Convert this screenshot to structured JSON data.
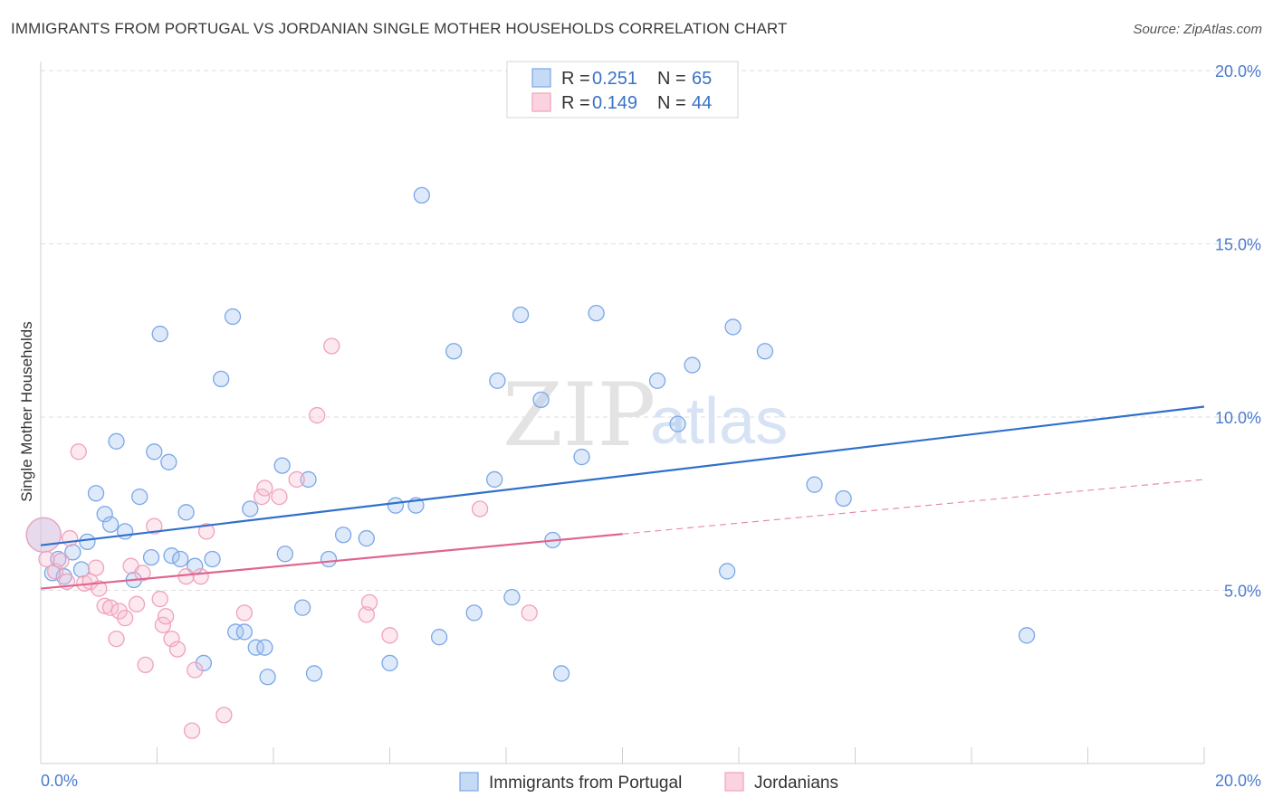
{
  "header": {
    "title": "IMMIGRANTS FROM PORTUGAL VS JORDANIAN SINGLE MOTHER HOUSEHOLDS CORRELATION CHART",
    "source": "Source: ZipAtlas.com"
  },
  "watermark": {
    "part1": "ZIP",
    "part2": "atlas"
  },
  "legend": {
    "rows": [
      {
        "r_label": "R =",
        "r_value": "0.251",
        "n_label": "N =",
        "n_value": "65"
      },
      {
        "r_label": "R =",
        "r_value": "0.149",
        "n_label": "N =",
        "n_value": "44"
      }
    ]
  },
  "chart_data": {
    "type": "scatter",
    "ylabel": "Single Mother Households",
    "xlabel": "",
    "xlim": [
      0,
      20
    ],
    "ylim": [
      0,
      20
    ],
    "x_tick_labels": {
      "min": "0.0%",
      "max": "20.0%"
    },
    "y_ticks": [
      {
        "value": 5,
        "label": "5.0%"
      },
      {
        "value": 10,
        "label": "10.0%"
      },
      {
        "value": 15,
        "label": "15.0%"
      },
      {
        "value": 20,
        "label": "20.0%"
      }
    ],
    "grid": true,
    "legend_position": "top-center",
    "colors": {
      "portugal": "#7aa7e6",
      "portugal_line": "#3070cc",
      "jordan": "#f0a2bb",
      "jordan_line": "#e0658e"
    },
    "series": [
      {
        "name": "Immigrants from Portugal",
        "r": 0.251,
        "n": 65,
        "trend": {
          "x1": 0,
          "y1": 6.3,
          "x2": 20,
          "y2": 10.3,
          "dashed_from": null
        },
        "points": [
          [
            0.05,
            6.6,
            "big"
          ],
          [
            0.2,
            5.5
          ],
          [
            0.3,
            5.9
          ],
          [
            0.4,
            5.4
          ],
          [
            0.55,
            6.1
          ],
          [
            0.7,
            5.6
          ],
          [
            0.8,
            6.4
          ],
          [
            0.95,
            7.8
          ],
          [
            1.1,
            7.2
          ],
          [
            1.2,
            6.9
          ],
          [
            1.45,
            6.7
          ],
          [
            1.6,
            5.3
          ],
          [
            1.3,
            9.3
          ],
          [
            1.7,
            7.7
          ],
          [
            1.9,
            5.95
          ],
          [
            1.95,
            9.0
          ],
          [
            2.05,
            12.4
          ],
          [
            2.2,
            8.7
          ],
          [
            2.25,
            6.0
          ],
          [
            2.5,
            7.25
          ],
          [
            2.4,
            5.9
          ],
          [
            2.65,
            5.7
          ],
          [
            2.8,
            2.9
          ],
          [
            2.95,
            5.9
          ],
          [
            3.1,
            11.1
          ],
          [
            3.3,
            12.9
          ],
          [
            3.35,
            3.8
          ],
          [
            3.5,
            3.8
          ],
          [
            3.6,
            7.35
          ],
          [
            3.7,
            3.35
          ],
          [
            3.9,
            2.5
          ],
          [
            3.85,
            3.35
          ],
          [
            4.15,
            8.6
          ],
          [
            4.2,
            6.05
          ],
          [
            4.5,
            4.5
          ],
          [
            4.6,
            8.2
          ],
          [
            4.7,
            2.6
          ],
          [
            4.95,
            5.9
          ],
          [
            5.2,
            6.6
          ],
          [
            5.6,
            6.5
          ],
          [
            6.0,
            2.9
          ],
          [
            6.1,
            7.45
          ],
          [
            6.45,
            7.45
          ],
          [
            6.55,
            16.4
          ],
          [
            6.85,
            3.65
          ],
          [
            7.1,
            11.9
          ],
          [
            7.45,
            4.35
          ],
          [
            7.8,
            8.2
          ],
          [
            7.85,
            11.05
          ],
          [
            8.1,
            4.8
          ],
          [
            8.25,
            12.95
          ],
          [
            8.6,
            10.5
          ],
          [
            8.8,
            6.45
          ],
          [
            8.95,
            2.6
          ],
          [
            9.3,
            8.85
          ],
          [
            9.55,
            13.0
          ],
          [
            10.6,
            11.05
          ],
          [
            10.95,
            9.8
          ],
          [
            11.2,
            11.5
          ],
          [
            11.8,
            5.55
          ],
          [
            11.9,
            12.6
          ],
          [
            12.45,
            11.9
          ],
          [
            13.3,
            8.05
          ],
          [
            13.8,
            7.65
          ],
          [
            16.95,
            3.7
          ]
        ]
      },
      {
        "name": "Jordanians",
        "r": 0.149,
        "n": 44,
        "trend": {
          "x1": 0,
          "y1": 5.05,
          "x2": 20,
          "y2": 8.2,
          "solid_until": 10.0
        },
        "points": [
          [
            0.05,
            6.6,
            "big"
          ],
          [
            0.1,
            5.9
          ],
          [
            0.25,
            5.55
          ],
          [
            0.35,
            5.85
          ],
          [
            0.45,
            5.25
          ],
          [
            0.5,
            6.5
          ],
          [
            0.65,
            9.0
          ],
          [
            0.75,
            5.2
          ],
          [
            0.85,
            5.25
          ],
          [
            0.95,
            5.65
          ],
          [
            1.0,
            5.05
          ],
          [
            1.1,
            4.55
          ],
          [
            1.2,
            4.5
          ],
          [
            1.3,
            3.6
          ],
          [
            1.35,
            4.4
          ],
          [
            1.45,
            4.2
          ],
          [
            1.55,
            5.7
          ],
          [
            1.65,
            4.6
          ],
          [
            1.75,
            5.5
          ],
          [
            1.8,
            2.85
          ],
          [
            1.95,
            6.85
          ],
          [
            2.05,
            4.75
          ],
          [
            2.1,
            4.0
          ],
          [
            2.15,
            4.25
          ],
          [
            2.25,
            3.6
          ],
          [
            2.35,
            3.3
          ],
          [
            2.5,
            5.4
          ],
          [
            2.6,
            0.95
          ],
          [
            2.65,
            2.7
          ],
          [
            2.75,
            5.4
          ],
          [
            2.85,
            6.7
          ],
          [
            3.15,
            1.4
          ],
          [
            3.5,
            4.35
          ],
          [
            3.8,
            7.7
          ],
          [
            3.85,
            7.95
          ],
          [
            4.1,
            7.7
          ],
          [
            4.4,
            8.2
          ],
          [
            4.75,
            10.05
          ],
          [
            5.0,
            12.05
          ],
          [
            5.6,
            4.3
          ],
          [
            5.65,
            4.65
          ],
          [
            6.0,
            3.7
          ],
          [
            7.55,
            7.35
          ],
          [
            8.4,
            4.35
          ]
        ]
      }
    ]
  }
}
